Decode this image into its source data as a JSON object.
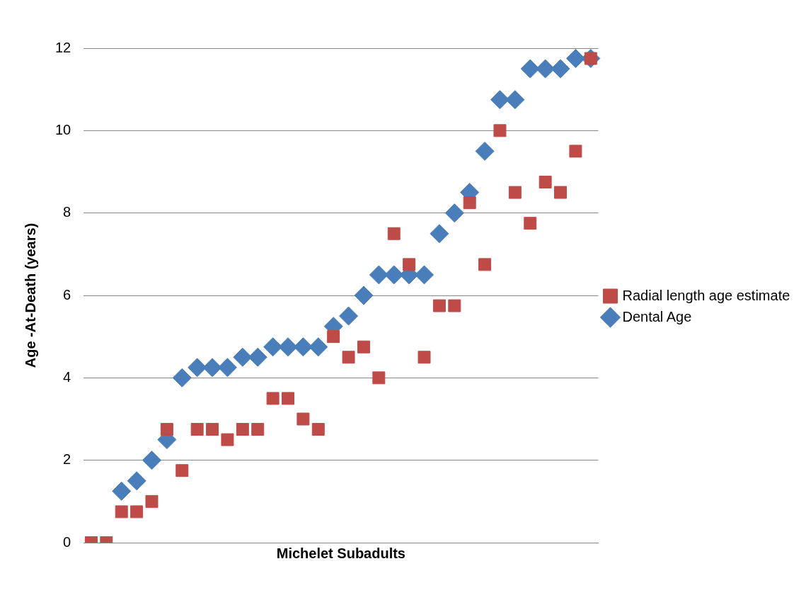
{
  "chart_data": {
    "type": "scatter",
    "xlabel": "Michelet Subadults",
    "ylabel": "Age -At-Death (years)",
    "categories": [
      null,
      null,
      null,
      null,
      null,
      null,
      null,
      null,
      null,
      null,
      null,
      null,
      null,
      null,
      null,
      null,
      null,
      null,
      null,
      null,
      null,
      null,
      null,
      null,
      null,
      null,
      null,
      null,
      null,
      null,
      null,
      null,
      null,
      null
    ],
    "ylim": [
      0,
      12
    ],
    "yticks": [
      0,
      2,
      4,
      6,
      8,
      10,
      12
    ],
    "tick_labels": "y",
    "grid": "y",
    "legend": "right",
    "series": [
      {
        "name": "Dental Age",
        "color": "#4a7ebb",
        "marker": "diamond",
        "values": [
          null,
          null,
          1.25,
          1.5,
          2.0,
          2.5,
          4.0,
          4.25,
          4.25,
          4.25,
          4.5,
          4.5,
          4.75,
          4.75,
          4.75,
          4.75,
          5.25,
          5.5,
          6.0,
          6.5,
          6.5,
          6.5,
          6.5,
          7.5,
          8.0,
          8.5,
          9.5,
          10.75,
          10.75,
          11.5,
          11.5,
          11.5,
          11.75,
          11.75
        ]
      },
      {
        "name": "Radial length age estimate",
        "color": "#be4b48",
        "marker": "square",
        "values": [
          0,
          0,
          0.75,
          0.75,
          1.0,
          2.75,
          1.75,
          2.75,
          2.75,
          2.5,
          2.75,
          2.75,
          3.5,
          3.5,
          3.0,
          2.75,
          5.0,
          4.5,
          4.75,
          4.0,
          7.5,
          6.75,
          4.5,
          5.75,
          5.75,
          8.25,
          6.75,
          10.0,
          8.5,
          7.75,
          8.75,
          8.5,
          9.5,
          11.75
        ]
      }
    ]
  }
}
